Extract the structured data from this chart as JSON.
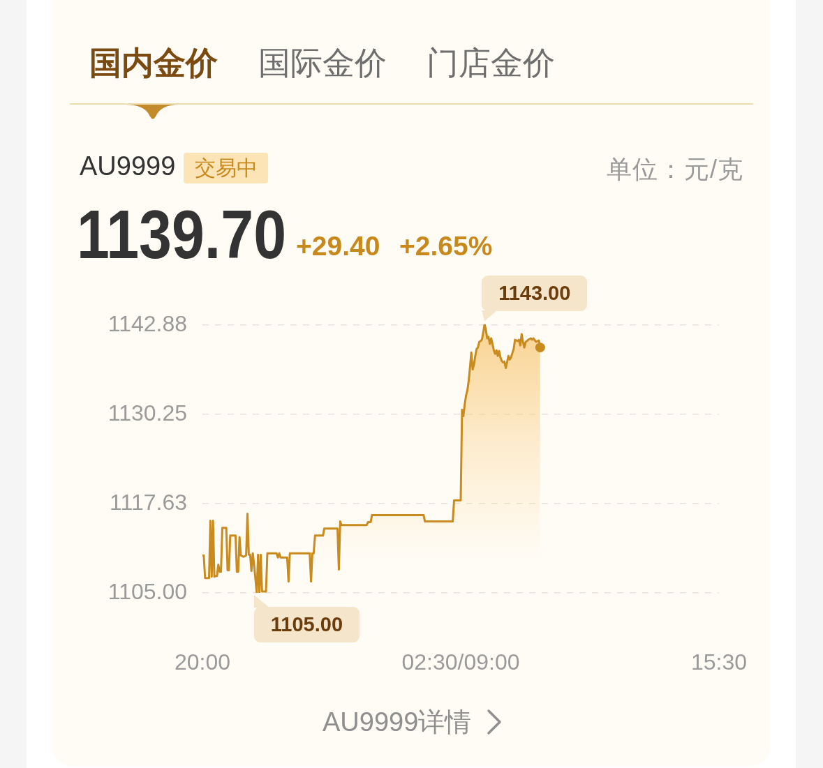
{
  "chart_data": {
    "type": "area",
    "categories": [
      "20:00",
      null,
      null,
      null,
      null,
      null,
      null,
      null,
      null,
      null,
      null,
      null,
      null,
      null,
      null,
      null,
      null,
      null,
      null,
      null,
      null,
      null,
      null,
      null,
      null,
      null,
      null,
      null,
      null,
      null,
      null,
      null,
      null,
      null,
      null,
      null,
      null,
      null,
      null,
      null,
      null,
      null,
      null,
      null,
      null,
      null,
      null,
      null,
      null,
      null,
      null,
      null,
      null,
      null,
      null,
      null,
      null,
      null,
      null,
      null,
      null,
      null,
      null,
      null,
      null,
      null,
      null,
      null,
      null,
      null,
      null,
      null,
      null,
      null,
      null,
      null,
      null,
      null,
      null,
      null,
      null,
      null,
      null,
      null,
      null,
      null,
      null,
      null,
      null,
      null,
      null,
      null,
      null,
      null,
      null,
      null,
      null,
      null,
      null,
      null,
      null,
      null,
      null,
      null,
      null,
      null,
      null,
      null,
      null,
      null,
      null,
      null,
      null,
      null,
      null,
      null,
      null,
      null,
      null,
      null,
      null,
      null,
      null,
      null,
      null,
      null,
      null,
      null,
      null,
      null,
      null,
      null,
      null,
      null,
      null,
      null,
      null,
      null,
      null,
      null,
      null,
      null,
      null,
      null,
      null,
      null,
      null,
      null,
      null,
      null,
      null,
      null,
      null,
      null,
      null,
      null,
      null,
      null,
      null,
      null,
      null,
      null,
      null,
      null,
      null,
      null,
      null,
      null,
      null,
      null,
      null,
      null,
      null,
      null,
      null,
      null,
      null,
      null,
      null,
      null,
      null,
      null,
      null,
      null,
      null,
      null,
      null,
      null,
      null,
      null,
      null,
      null,
      null,
      null,
      null,
      "02:30/09:00",
      null,
      null,
      null,
      null,
      null,
      null,
      null,
      null,
      null,
      null,
      null,
      null,
      null,
      null,
      null,
      null,
      null,
      null,
      null,
      null,
      null,
      null,
      null,
      null,
      null,
      null,
      null,
      null,
      null,
      null,
      null,
      null,
      null,
      null,
      null,
      null,
      null,
      null,
      null,
      null,
      null,
      null,
      null,
      null,
      null,
      null,
      null,
      null,
      null,
      null,
      null,
      null,
      null,
      null,
      null,
      null,
      null,
      null,
      null,
      null,
      null,
      null,
      null,
      null,
      null,
      null,
      null,
      null,
      null,
      null,
      null,
      null,
      null,
      null,
      null,
      null,
      null,
      null,
      null,
      null,
      null,
      null,
      null,
      null,
      null,
      null,
      null,
      null,
      null,
      null,
      null,
      null,
      null,
      null,
      null,
      null,
      null,
      null,
      null,
      null,
      null,
      null,
      null,
      null,
      null,
      null,
      null,
      null,
      null,
      null,
      null,
      null,
      null,
      null,
      null,
      null,
      null,
      null,
      null,
      null,
      null,
      null,
      null,
      null,
      null,
      null,
      null,
      null,
      null,
      null,
      null,
      null,
      null,
      null,
      null,
      null,
      null,
      null,
      null,
      null,
      null,
      null,
      null,
      null,
      null,
      null,
      null,
      null,
      null,
      null,
      null,
      null,
      null,
      null,
      null,
      null,
      null,
      null,
      null,
      null,
      null,
      null,
      null,
      null,
      null,
      null,
      null,
      null,
      null,
      null,
      null,
      null,
      null,
      null,
      null,
      null,
      null,
      null,
      null,
      null,
      null,
      null,
      null,
      null,
      null,
      null,
      null,
      null,
      null,
      null,
      null,
      null,
      null,
      null,
      "15:30"
    ],
    "series": [
      {
        "color": "#c98a1e",
        "values": [
          1110.3,
          1110.3,
          1107.1,
          1107.1,
          1107.1,
          1107.1,
          1115.2,
          1107.3,
          1115.2,
          1107.3,
          1107.4,
          1107.4,
          1109.0,
          1108.0,
          1108.0,
          1114.2,
          1114.2,
          1114.2,
          1114.2,
          1108.2,
          1108.2,
          1113.1,
          1113.1,
          1113.1,
          1113.1,
          1113.1,
          1108.0,
          1108.0,
          1112.9,
          1110.3,
          1110.2,
          1110.1,
          1110.2,
          1110.3,
          1116.2,
          1110.4,
          1110.4,
          1108.1,
          1110.6,
          1109.0,
          1107.0,
          1105.0,
          1110.4,
          1105.1,
          1110.4,
          1105.2,
          1105.2,
          1105.2,
          1105.2,
          1110.6,
          1110.6,
          1110.6,
          1110.6,
          1110.6,
          1110.6,
          1110.6,
          1110.6,
          1110.0,
          1110.6,
          1110.0,
          1110.0,
          1110.0,
          1110.0,
          1110.0,
          1110.0,
          1106.6,
          1110.6,
          1110.6,
          1110.6,
          1110.6,
          1110.6,
          1110.6,
          1110.6,
          1110.6,
          1110.6,
          1110.6,
          1110.6,
          1110.6,
          1110.6,
          1110.6,
          1110.6,
          1110.6,
          1106.6,
          1110.6,
          1110.6,
          1113.1,
          1113.1,
          1113.1,
          1113.1,
          1113.1,
          1113.1,
          1113.1,
          1114.1,
          1114.1,
          1114.1,
          1114.1,
          1114.1,
          1114.1,
          1114.1,
          1114.1,
          1114.1,
          1114.1,
          1114.1,
          1108.3,
          1115.1,
          1114.6,
          1114.6,
          1114.6,
          1114.6,
          1114.6,
          1114.6,
          1114.6,
          1114.6,
          1114.6,
          1114.6,
          1114.6,
          1114.6,
          1114.6,
          1114.6,
          1114.6,
          1114.6,
          1114.6,
          1114.6,
          1114.6,
          1114.6,
          1115.0,
          1115.0,
          1115.0,
          1116.0,
          1116.0,
          1116.0,
          1116.0,
          1116.0,
          1116.0,
          1116.0,
          1116.0,
          1116.0,
          1116.0,
          1116.0,
          1116.0,
          1116.0,
          1116.0,
          1116.0,
          1116.0,
          1116.0,
          1116.0,
          1116.0,
          1116.0,
          1116.0,
          1116.0,
          1116.0,
          1116.0,
          1116.0,
          1116.0,
          1116.0,
          1116.0,
          1116.0,
          1116.0,
          1116.0,
          1116.0,
          1116.0,
          1116.0,
          1116.0,
          1116.0,
          1116.0,
          1116.0,
          1116.0,
          1116.0,
          1115.1,
          1115.1,
          1115.1,
          1115.1,
          1115.1,
          1115.1,
          1115.1,
          1115.1,
          1115.1,
          1115.1,
          1115.1,
          1115.1,
          1115.1,
          1115.1,
          1115.1,
          1115.1,
          1115.1,
          1115.1,
          1115.1,
          1115.1,
          1115.1,
          1115.1,
          1118.1,
          1118.1,
          1118.1,
          1118.1,
          1118.1,
          1118.1,
          1130.9,
          1130.0,
          1131.6,
          1132.9,
          1133.6,
          1134.9,
          1136.9,
          1139.0,
          1136.6,
          1137.3,
          1138.5,
          1139.5,
          1139.7,
          1140.5,
          1140.6,
          1140.8,
          1141.8,
          1143.0,
          1142.2,
          1141.0,
          1141.2,
          1140.2,
          1141.0,
          1140.2,
          1139.3,
          1138.8,
          1139.3,
          1138.5,
          1139.2,
          1138.3,
          1137.8,
          1137.6,
          1137.7,
          1136.8,
          1137.6,
          1138.5,
          1138.0,
          1138.3,
          1138.9,
          1139.5,
          1140.8,
          1140.7,
          1140.6,
          1140.8,
          1140.0,
          1141.6,
          1140.5,
          1139.7,
          1140.5,
          1140.6,
          1140.8,
          1140.9,
          1141.0,
          1140.8,
          1141.0,
          1140.7,
          1140.5,
          1140.6,
          1140.7,
          1139.7,
          null,
          null,
          null,
          null,
          null,
          null,
          null,
          null,
          null,
          null,
          null,
          null,
          null,
          null,
          null,
          null,
          null,
          null,
          null,
          null,
          null,
          null,
          null,
          null,
          null,
          null,
          null,
          null,
          null,
          null,
          null,
          null,
          null,
          null,
          null,
          null,
          null,
          null,
          null,
          null,
          null,
          null,
          null,
          null,
          null,
          null,
          null,
          null,
          null,
          null,
          null,
          null,
          null,
          null,
          null,
          null,
          null,
          null,
          null,
          null,
          null,
          null,
          null,
          null,
          null,
          null,
          null,
          null,
          null,
          null,
          null,
          null,
          null,
          null,
          null,
          null,
          null,
          null,
          null,
          null,
          null,
          null,
          null,
          null,
          null,
          null,
          null,
          null,
          null,
          null,
          null,
          null,
          null,
          null,
          null,
          null,
          null,
          null,
          null,
          null,
          null,
          null,
          null,
          null,
          null,
          null,
          null,
          null,
          null,
          null,
          null,
          null,
          null,
          null,
          null,
          null,
          null,
          null,
          null,
          null,
          null,
          null,
          null,
          null,
          null,
          null,
          null,
          null,
          null,
          null,
          null,
          null,
          null,
          null,
          null
        ]
      },
      {
        "type": "scatter",
        "color": "#c98a1e",
        "marker": "circle",
        "values": [
          null,
          null,
          null,
          null,
          null,
          null,
          null,
          null,
          null,
          null,
          null,
          null,
          null,
          null,
          null,
          null,
          null,
          null,
          null,
          null,
          null,
          null,
          null,
          null,
          null,
          null,
          null,
          null,
          null,
          null,
          null,
          null,
          null,
          null,
          null,
          null,
          null,
          null,
          null,
          null,
          null,
          null,
          null,
          null,
          null,
          null,
          null,
          null,
          null,
          null,
          null,
          null,
          null,
          null,
          null,
          null,
          null,
          null,
          null,
          null,
          null,
          null,
          null,
          null,
          null,
          null,
          null,
          null,
          null,
          null,
          null,
          null,
          null,
          null,
          null,
          null,
          null,
          null,
          null,
          null,
          null,
          null,
          null,
          null,
          null,
          null,
          null,
          null,
          null,
          null,
          null,
          null,
          null,
          null,
          null,
          null,
          null,
          null,
          null,
          null,
          null,
          null,
          null,
          null,
          null,
          null,
          null,
          null,
          null,
          null,
          null,
          null,
          null,
          null,
          null,
          null,
          null,
          null,
          null,
          null,
          null,
          null,
          null,
          null,
          null,
          null,
          null,
          null,
          null,
          null,
          null,
          null,
          null,
          null,
          null,
          null,
          null,
          null,
          null,
          null,
          null,
          null,
          null,
          null,
          null,
          null,
          null,
          null,
          null,
          null,
          null,
          null,
          null,
          null,
          null,
          null,
          null,
          null,
          null,
          null,
          null,
          null,
          null,
          null,
          null,
          null,
          null,
          null,
          null,
          null,
          null,
          null,
          null,
          null,
          null,
          null,
          null,
          null,
          null,
          null,
          null,
          null,
          null,
          null,
          null,
          null,
          null,
          null,
          null,
          null,
          null,
          null,
          null,
          null,
          null,
          null,
          null,
          null,
          null,
          null,
          null,
          null,
          null,
          null,
          null,
          null,
          null,
          null,
          null,
          null,
          null,
          null,
          null,
          null,
          null,
          null,
          null,
          null,
          null,
          null,
          null,
          null,
          null,
          null,
          null,
          null,
          null,
          null,
          null,
          null,
          null,
          null,
          null,
          null,
          null,
          null,
          null,
          null,
          null,
          null,
          null,
          null,
          null,
          null,
          null,
          null,
          null,
          null,
          null,
          null,
          null,
          null,
          null,
          null,
          null,
          1139.7,
          null,
          null,
          null,
          null,
          null,
          null,
          null,
          null,
          null,
          null,
          null,
          null,
          null,
          null,
          null,
          null,
          null,
          null,
          null,
          null,
          null,
          null,
          null,
          null,
          null,
          null,
          null,
          null,
          null,
          null,
          null,
          null,
          null,
          null,
          null,
          null,
          null,
          null,
          null,
          null,
          null,
          null,
          null,
          null,
          null,
          null,
          null,
          null,
          null,
          null,
          null,
          null,
          null,
          null,
          null,
          null,
          null,
          null,
          null,
          null,
          null,
          null,
          null,
          null,
          null,
          null,
          null,
          null,
          null,
          null,
          null,
          null,
          null,
          null,
          null,
          null,
          null,
          null,
          null,
          null,
          null,
          null,
          null,
          null,
          null,
          null,
          null,
          null,
          null,
          null,
          null,
          null,
          null,
          null,
          null,
          null,
          null,
          null,
          null,
          null,
          null,
          null,
          null,
          null,
          null,
          null,
          null,
          null,
          null,
          null,
          null,
          null,
          null,
          null,
          null,
          null,
          null,
          null,
          null,
          null,
          null,
          null,
          null,
          null,
          null,
          null,
          null,
          null,
          null,
          null,
          null,
          null,
          null,
          null,
          null
        ]
      }
    ],
    "ylim": [
      1105,
      1143
    ],
    "yticks": [
      {
        "value": 1105,
        "label": "1105.00"
      },
      {
        "value": 1117.625,
        "label": "1117.63"
      },
      1130.25,
      {
        "value": 1142.875,
        "label": "1142.88"
      }
    ],
    "grid": "y",
    "annotations": [
      "国内金价",
      "国际金价",
      "门店金价",
      "AU9999",
      "交易中",
      "单位：元/克",
      "1139.70",
      "+29.40",
      "+2.65%",
      "1143.00",
      "1105.00",
      "AU9999详情"
    ]
  }
}
